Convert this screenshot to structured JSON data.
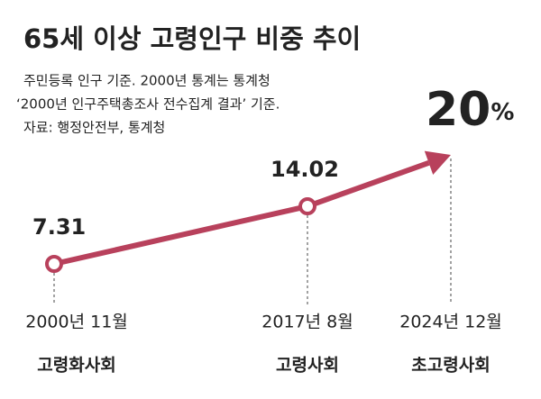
{
  "chart_data": {
    "type": "line",
    "title": "65세 이상 고령인구 비중 추이",
    "notes": [
      "주민등록 인구 기준. 2000년 통계는 통계청",
      "‘2000년 인구주택총조사 전수집계 결과’ 기준.",
      "자료: 행정안전부, 통계청"
    ],
    "categories": [
      "2000년 11월",
      "2017년 8월",
      "2024년 12월"
    ],
    "stages": [
      "고령화사회",
      "고령사회",
      "초고령사회"
    ],
    "values": [
      7.31,
      14.02,
      20
    ],
    "value_labels": [
      "7.31",
      "14.02",
      "20%"
    ],
    "color": "#b8415c",
    "stage_color": "#c8333f"
  }
}
